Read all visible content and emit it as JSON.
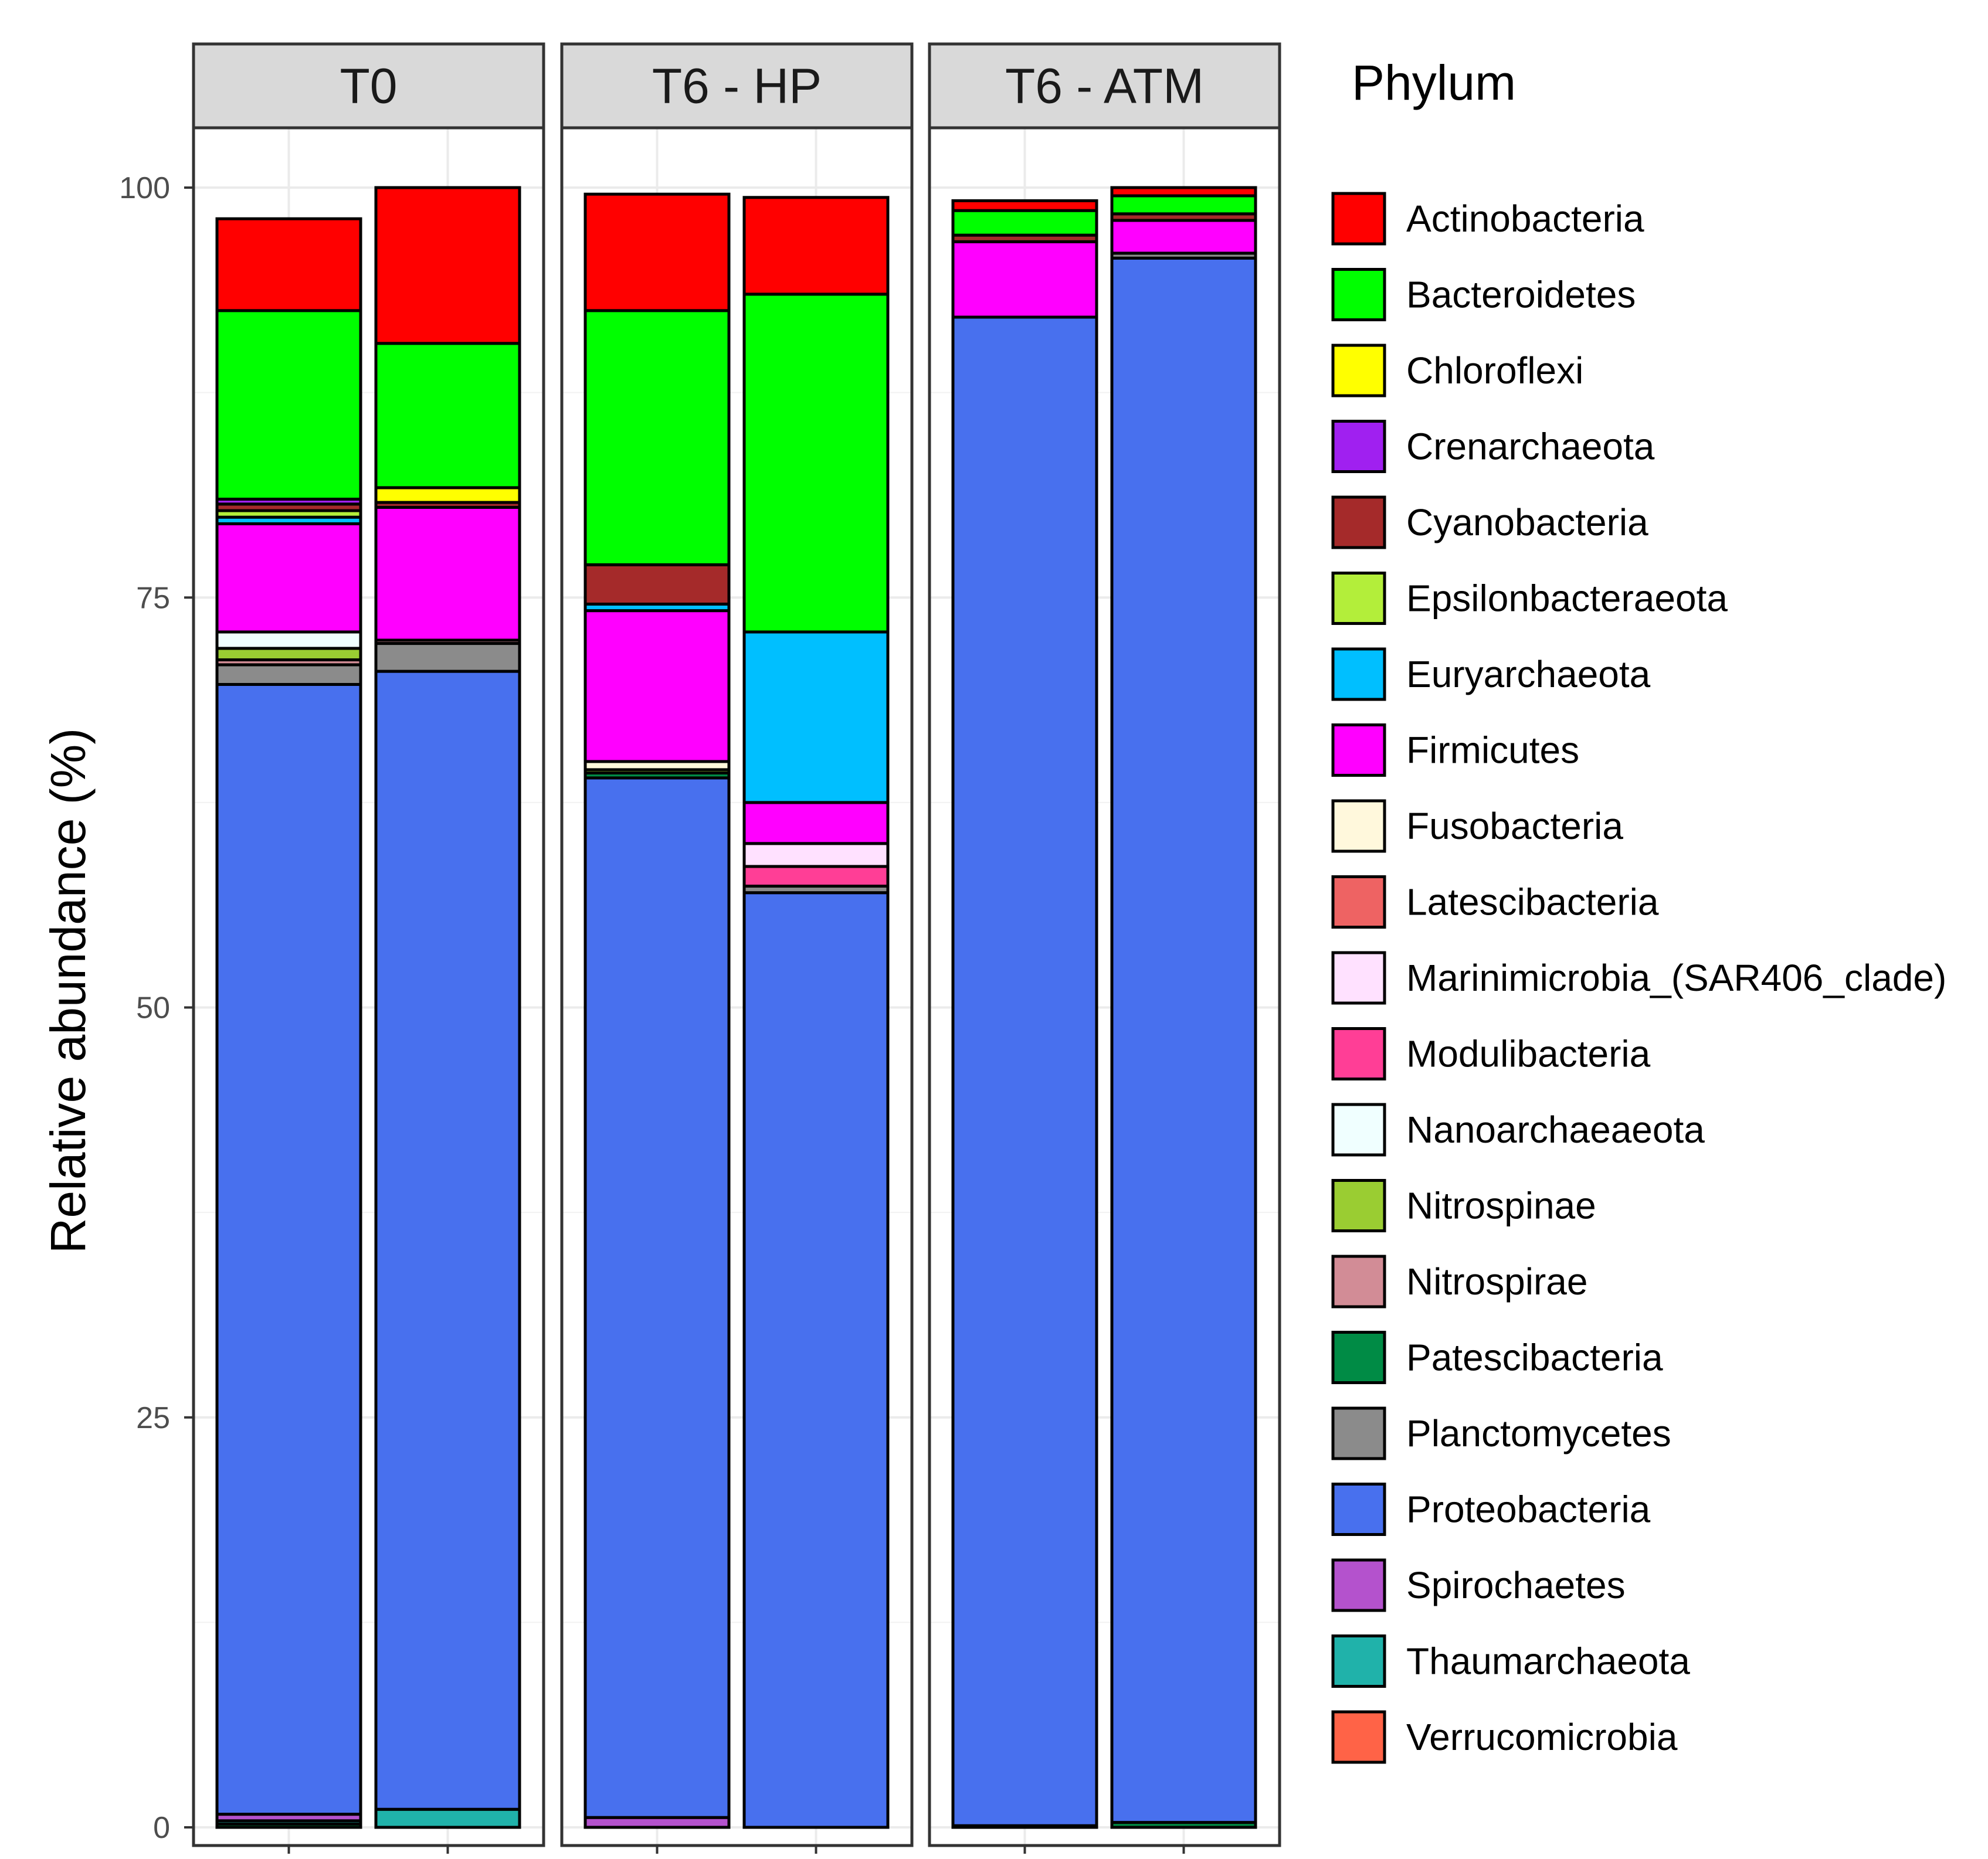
{
  "chart_data": {
    "type": "bar",
    "stacked": true,
    "ylabel": "Relative abundance (%)",
    "xlabel": "",
    "ylim": [
      0,
      100
    ],
    "yticks": [
      0,
      25,
      50,
      75,
      100
    ],
    "grid": true,
    "legend": {
      "title": "Phylum",
      "position": "right",
      "items": [
        {
          "name": "Actinobacteria",
          "color": "#ff0000"
        },
        {
          "name": "Bacteroidetes",
          "color": "#00ff00"
        },
        {
          "name": "Chloroflexi",
          "color": "#ffff00"
        },
        {
          "name": "Crenarchaeota",
          "color": "#a020f0"
        },
        {
          "name": "Cyanobacteria",
          "color": "#a52a2a"
        },
        {
          "name": "Epsilonbacteraeota",
          "color": "#b3ee3a"
        },
        {
          "name": "Euryarchaeota",
          "color": "#00bfff"
        },
        {
          "name": "Firmicutes",
          "color": "#ff00ff"
        },
        {
          "name": "Fusobacteria",
          "color": "#fff8dc"
        },
        {
          "name": "Latescibacteria",
          "color": "#ee6363"
        },
        {
          "name": "Marinimicrobia_(SAR406_clade)",
          "color": "#ffe1ff"
        },
        {
          "name": "Modulibacteria",
          "color": "#ff3e96"
        },
        {
          "name": "Nanoarchaeaeota",
          "color": "#f0ffff"
        },
        {
          "name": "Nitrospinae",
          "color": "#9acd32"
        },
        {
          "name": "Nitrospirae",
          "color": "#d28c96"
        },
        {
          "name": "Patescibacteria",
          "color": "#008b45"
        },
        {
          "name": "Planctomycetes",
          "color": "#8b8b8b"
        },
        {
          "name": "Proteobacteria",
          "color": "#4870ee"
        },
        {
          "name": "Spirochaetes",
          "color": "#b452cd"
        },
        {
          "name": "Thaumarchaeota",
          "color": "#20b2aa"
        },
        {
          "name": "Verrucomicrobia",
          "color": "#ff6347"
        }
      ]
    },
    "facets": [
      {
        "label": "T0",
        "bars": [
          {
            "segments": [
              {
                "phylum": "Patescibacteria",
                "value": 0.2
              },
              {
                "phylum": "Thaumarchaeota",
                "value": 0.2
              },
              {
                "phylum": "Spirochaetes",
                "value": 0.4
              },
              {
                "phylum": "Proteobacteria",
                "value": 68.9
              },
              {
                "phylum": "Planctomycetes",
                "value": 1.2
              },
              {
                "phylum": "Nitrospirae",
                "value": 0.3
              },
              {
                "phylum": "Nitrospinae",
                "value": 0.7
              },
              {
                "phylum": "Nanoarchaeaeota",
                "value": 1.0
              },
              {
                "phylum": "Firmicutes",
                "value": 6.6
              },
              {
                "phylum": "Euryarchaeota",
                "value": 0.4
              },
              {
                "phylum": "Epsilonbacteraeota",
                "value": 0.4
              },
              {
                "phylum": "Cyanobacteria",
                "value": 0.4
              },
              {
                "phylum": "Crenarchaeota",
                "value": 0.3
              },
              {
                "phylum": "Bacteroidetes",
                "value": 11.5
              },
              {
                "phylum": "Actinobacteria",
                "value": 5.6
              }
            ]
          },
          {
            "segments": [
              {
                "phylum": "Thaumarchaeota",
                "value": 1.1
              },
              {
                "phylum": "Proteobacteria",
                "value": 69.4
              },
              {
                "phylum": "Planctomycetes",
                "value": 1.7
              },
              {
                "phylum": "Nitrospirae",
                "value": 0.2
              },
              {
                "phylum": "Firmicutes",
                "value": 8.1
              },
              {
                "phylum": "Cyanobacteria",
                "value": 0.3
              },
              {
                "phylum": "Chloroflexi",
                "value": 0.9
              },
              {
                "phylum": "Bacteroidetes",
                "value": 8.8
              },
              {
                "phylum": "Actinobacteria",
                "value": 9.5
              }
            ]
          }
        ]
      },
      {
        "label": "T6 - HP",
        "bars": [
          {
            "segments": [
              {
                "phylum": "Spirochaetes",
                "value": 0.6
              },
              {
                "phylum": "Proteobacteria",
                "value": 63.4
              },
              {
                "phylum": "Patescibacteria",
                "value": 0.3
              },
              {
                "phylum": "Nitrospinae",
                "value": 0.2
              },
              {
                "phylum": "Fusobacteria",
                "value": 0.5
              },
              {
                "phylum": "Firmicutes",
                "value": 9.2
              },
              {
                "phylum": "Euryarchaeota",
                "value": 0.4
              },
              {
                "phylum": "Cyanobacteria",
                "value": 2.4
              },
              {
                "phylum": "Bacteroidetes",
                "value": 15.5
              },
              {
                "phylum": "Actinobacteria",
                "value": 7.1
              }
            ]
          },
          {
            "segments": [
              {
                "phylum": "Proteobacteria",
                "value": 57.0
              },
              {
                "phylum": "Planctomycetes",
                "value": 0.4
              },
              {
                "phylum": "Modulibacteria",
                "value": 1.2
              },
              {
                "phylum": "Marinimicrobia_(SAR406_clade)",
                "value": 1.4
              },
              {
                "phylum": "Firmicutes",
                "value": 2.5
              },
              {
                "phylum": "Euryarchaeota",
                "value": 10.4
              },
              {
                "phylum": "Bacteroidetes",
                "value": 20.6
              },
              {
                "phylum": "Actinobacteria",
                "value": 5.9
              }
            ]
          }
        ]
      },
      {
        "label": "T6 - ATM",
        "bars": [
          {
            "segments": [
              {
                "phylum": "Patescibacteria",
                "value": 0.1
              },
              {
                "phylum": "Proteobacteria",
                "value": 92.0
              },
              {
                "phylum": "Firmicutes",
                "value": 4.6
              },
              {
                "phylum": "Cyanobacteria",
                "value": 0.4
              },
              {
                "phylum": "Bacteroidetes",
                "value": 1.5
              },
              {
                "phylum": "Actinobacteria",
                "value": 0.6
              }
            ]
          },
          {
            "segments": [
              {
                "phylum": "Patescibacteria",
                "value": 0.3
              },
              {
                "phylum": "Proteobacteria",
                "value": 95.4
              },
              {
                "phylum": "Planctomycetes",
                "value": 0.3
              },
              {
                "phylum": "Firmicutes",
                "value": 2.0
              },
              {
                "phylum": "Cyanobacteria",
                "value": 0.4
              },
              {
                "phylum": "Bacteroidetes",
                "value": 1.1
              },
              {
                "phylum": "Actinobacteria",
                "value": 0.5
              }
            ]
          }
        ]
      }
    ]
  }
}
